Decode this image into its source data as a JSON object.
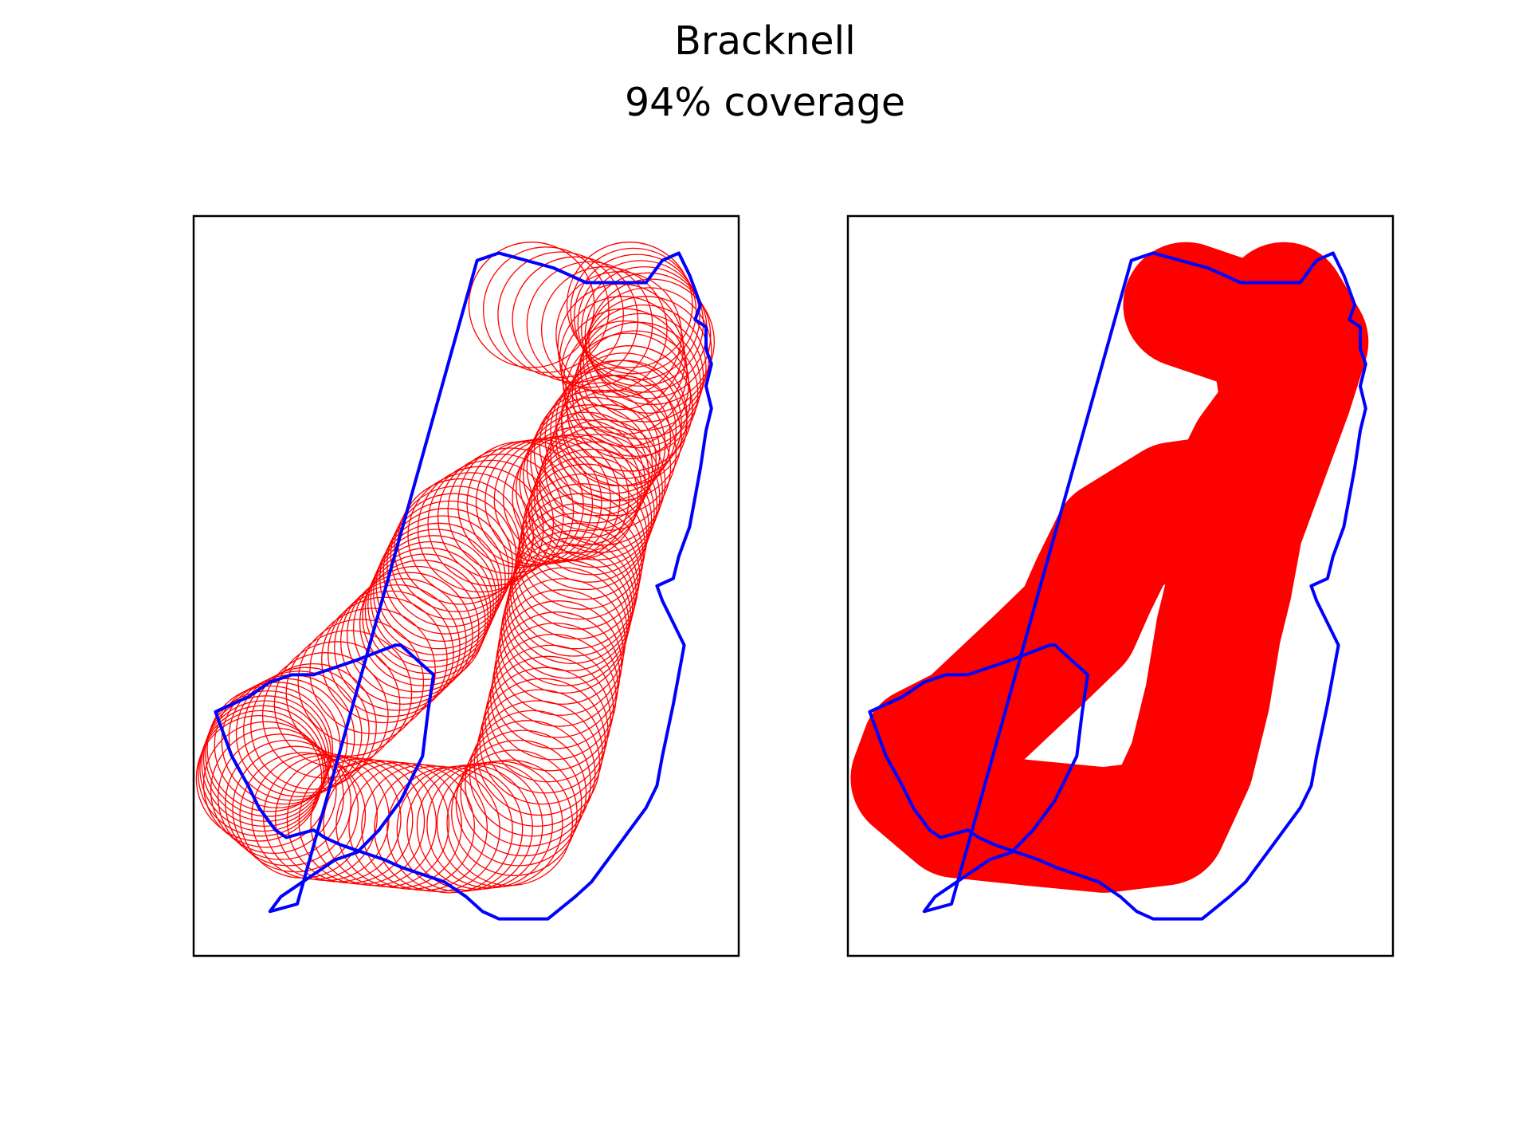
{
  "figure": {
    "title": "Bracknell",
    "subtitle": "94% coverage"
  },
  "colors": {
    "boundary": "#0000ff",
    "circles": "#ff0000",
    "frame": "#000000",
    "background": "#ffffff"
  },
  "chart_data": [
    {
      "type": "map",
      "panel": "left",
      "render": "circle-outlines",
      "title": "",
      "xlabel": "",
      "ylabel": "",
      "ticks": false,
      "grid": false,
      "xlim": [
        0,
        100
      ],
      "ylim": [
        0,
        100
      ],
      "series": [
        {
          "kind": "boundary-polygon",
          "points": [
            [
              52,
              94
            ],
            [
              56,
              95
            ],
            [
              61,
              94
            ],
            [
              66,
              93
            ],
            [
              69,
              92
            ],
            [
              72,
              91
            ],
            [
              83,
              91
            ],
            [
              86,
              94
            ],
            [
              89,
              95
            ],
            [
              91,
              92
            ],
            [
              92,
              90
            ],
            [
              93,
              88
            ],
            [
              92,
              86
            ],
            [
              94,
              85
            ],
            [
              94,
              82
            ],
            [
              95,
              80
            ],
            [
              94,
              77
            ],
            [
              95,
              74
            ],
            [
              94,
              71
            ],
            [
              93,
              66
            ],
            [
              92,
              62
            ],
            [
              91,
              58
            ],
            [
              89,
              54
            ],
            [
              88,
              51
            ],
            [
              85,
              50
            ],
            [
              86,
              48
            ],
            [
              88,
              45
            ],
            [
              90,
              42
            ],
            [
              88,
              34
            ],
            [
              86,
              27
            ],
            [
              85,
              23
            ],
            [
              83,
              20
            ],
            [
              80,
              17
            ],
            [
              78,
              15
            ],
            [
              75,
              12
            ],
            [
              73,
              10
            ],
            [
              70,
              8
            ],
            [
              65,
              5
            ],
            [
              56,
              5
            ],
            [
              53,
              6
            ],
            [
              50,
              8
            ],
            [
              46,
              10
            ],
            [
              42,
              11
            ],
            [
              38,
              12
            ],
            [
              35,
              13
            ],
            [
              31,
              14
            ],
            [
              27,
              15
            ],
            [
              24,
              16
            ],
            [
              22,
              17
            ],
            [
              17,
              16
            ],
            [
              15,
              17
            ],
            [
              14,
              18
            ],
            [
              12,
              20
            ],
            [
              10,
              23
            ],
            [
              7,
              27
            ],
            [
              5,
              31
            ],
            [
              4,
              33
            ],
            [
              7,
              34
            ],
            [
              10,
              35
            ],
            [
              14,
              37
            ],
            [
              18,
              38
            ],
            [
              22,
              38
            ],
            [
              26,
              39
            ],
            [
              30,
              40
            ],
            [
              37,
              42
            ],
            [
              38,
              42
            ],
            [
              41,
              40
            ],
            [
              44,
              38
            ],
            [
              43,
              33
            ],
            [
              42,
              27
            ],
            [
              38,
              21
            ],
            [
              34,
              17
            ],
            [
              30,
              14
            ],
            [
              26,
              13
            ],
            [
              22,
              11
            ],
            [
              20,
              10
            ],
            [
              16,
              8
            ],
            [
              15,
              7
            ],
            [
              14,
              6
            ],
            [
              19,
              7
            ]
          ]
        },
        {
          "kind": "buffer-path",
          "radius": 11.5,
          "points": [
            [
              62,
              88
            ],
            [
              78,
              84
            ],
            [
              80,
              74
            ],
            [
              74,
              68
            ],
            [
              70,
              62
            ],
            [
              60,
              61
            ],
            [
              49,
              56
            ],
            [
              45,
              50
            ],
            [
              42,
              45
            ],
            [
              35,
              40
            ],
            [
              22,
              31
            ],
            [
              14,
              28
            ],
            [
              12,
              24
            ],
            [
              20,
              19
            ],
            [
              33,
              18
            ],
            [
              47,
              17
            ],
            [
              58,
              18
            ],
            [
              63,
              26
            ],
            [
              66,
              35
            ],
            [
              68,
              44
            ],
            [
              70,
              50
            ],
            [
              72,
              58
            ],
            [
              75,
              64
            ],
            [
              81,
              76
            ],
            [
              84,
              83
            ],
            [
              80,
              88
            ]
          ]
        }
      ]
    },
    {
      "type": "map",
      "panel": "right",
      "render": "filled",
      "title": "",
      "xlabel": "",
      "ylabel": "",
      "ticks": false,
      "grid": false,
      "xlim": [
        0,
        100
      ],
      "ylim": [
        0,
        100
      ],
      "series": [
        {
          "kind": "boundary-polygon",
          "points": [
            [
              52,
              94
            ],
            [
              56,
              95
            ],
            [
              61,
              94
            ],
            [
              66,
              93
            ],
            [
              69,
              92
            ],
            [
              72,
              91
            ],
            [
              83,
              91
            ],
            [
              86,
              94
            ],
            [
              89,
              95
            ],
            [
              91,
              92
            ],
            [
              92,
              90
            ],
            [
              93,
              88
            ],
            [
              92,
              86
            ],
            [
              94,
              85
            ],
            [
              94,
              82
            ],
            [
              95,
              80
            ],
            [
              94,
              77
            ],
            [
              95,
              74
            ],
            [
              94,
              71
            ],
            [
              93,
              66
            ],
            [
              92,
              62
            ],
            [
              91,
              58
            ],
            [
              89,
              54
            ],
            [
              88,
              51
            ],
            [
              85,
              50
            ],
            [
              86,
              48
            ],
            [
              88,
              45
            ],
            [
              90,
              42
            ],
            [
              88,
              34
            ],
            [
              86,
              27
            ],
            [
              85,
              23
            ],
            [
              83,
              20
            ],
            [
              80,
              17
            ],
            [
              78,
              15
            ],
            [
              75,
              12
            ],
            [
              73,
              10
            ],
            [
              70,
              8
            ],
            [
              65,
              5
            ],
            [
              56,
              5
            ],
            [
              53,
              6
            ],
            [
              50,
              8
            ],
            [
              46,
              10
            ],
            [
              42,
              11
            ],
            [
              38,
              12
            ],
            [
              35,
              13
            ],
            [
              31,
              14
            ],
            [
              27,
              15
            ],
            [
              24,
              16
            ],
            [
              22,
              17
            ],
            [
              17,
              16
            ],
            [
              15,
              17
            ],
            [
              14,
              18
            ],
            [
              12,
              20
            ],
            [
              10,
              23
            ],
            [
              7,
              27
            ],
            [
              5,
              31
            ],
            [
              4,
              33
            ],
            [
              7,
              34
            ],
            [
              10,
              35
            ],
            [
              14,
              37
            ],
            [
              18,
              38
            ],
            [
              22,
              38
            ],
            [
              26,
              39
            ],
            [
              30,
              40
            ],
            [
              37,
              42
            ],
            [
              38,
              42
            ],
            [
              41,
              40
            ],
            [
              44,
              38
            ],
            [
              43,
              33
            ],
            [
              42,
              27
            ],
            [
              38,
              21
            ],
            [
              34,
              17
            ],
            [
              30,
              14
            ],
            [
              26,
              13
            ],
            [
              22,
              11
            ],
            [
              20,
              10
            ],
            [
              16,
              8
            ],
            [
              15,
              7
            ],
            [
              14,
              6
            ],
            [
              19,
              7
            ]
          ]
        },
        {
          "kind": "buffer-path",
          "radius": 11.5,
          "points": [
            [
              62,
              88
            ],
            [
              78,
              84
            ],
            [
              80,
              74
            ],
            [
              74,
              68
            ],
            [
              70,
              62
            ],
            [
              60,
              61
            ],
            [
              49,
              56
            ],
            [
              45,
              50
            ],
            [
              42,
              45
            ],
            [
              35,
              40
            ],
            [
              22,
              31
            ],
            [
              14,
              28
            ],
            [
              12,
              24
            ],
            [
              20,
              19
            ],
            [
              33,
              18
            ],
            [
              47,
              17
            ],
            [
              58,
              18
            ],
            [
              63,
              26
            ],
            [
              66,
              35
            ],
            [
              68,
              44
            ],
            [
              70,
              50
            ],
            [
              72,
              58
            ],
            [
              75,
              64
            ],
            [
              81,
              76
            ],
            [
              84,
              83
            ],
            [
              80,
              88
            ]
          ]
        }
      ]
    }
  ]
}
